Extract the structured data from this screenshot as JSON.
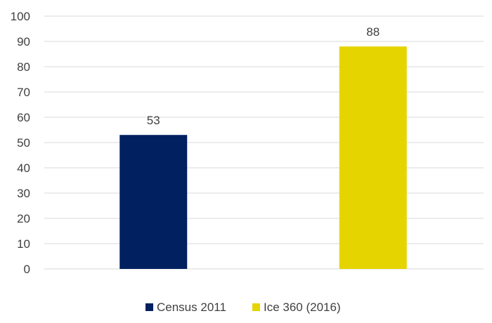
{
  "chart_data": {
    "type": "bar",
    "title": "",
    "xlabel": "",
    "ylabel": "",
    "ylim": [
      0,
      100
    ],
    "yticks": [
      0,
      10,
      20,
      30,
      40,
      50,
      60,
      70,
      80,
      90,
      100
    ],
    "grid": true,
    "legend_position": "bottom",
    "series": [
      {
        "name": "Census 2011",
        "value": 53,
        "color": "#002060"
      },
      {
        "name": "Ice 360 (2016)",
        "value": 88,
        "color": "#E6D400"
      }
    ]
  }
}
